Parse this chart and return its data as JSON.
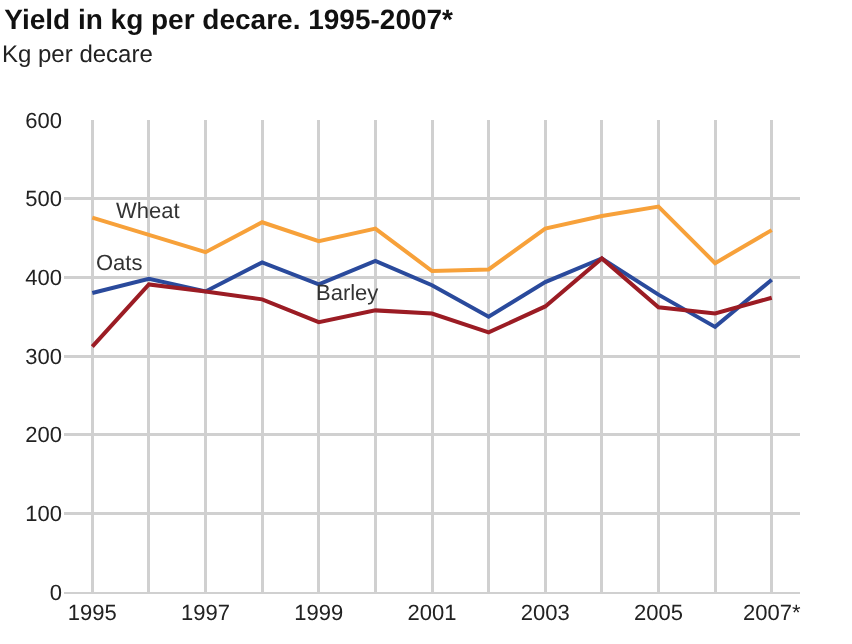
{
  "chart_data": {
    "type": "line",
    "title": "Yield in kg per decare. 1995-2007*",
    "ylabel": "Kg per decare",
    "x": [
      1995,
      1996,
      1997,
      1998,
      1999,
      2000,
      2001,
      2002,
      2003,
      2004,
      2005,
      2006,
      2007
    ],
    "series": [
      {
        "name": "Wheat",
        "color": "#f7a13a",
        "values": [
          476,
          454,
          432,
          470,
          446,
          462,
          408,
          410,
          462,
          478,
          490,
          418,
          460
        ]
      },
      {
        "name": "Oats",
        "color": "#2a4a9c",
        "values": [
          380,
          398,
          382,
          419,
          391,
          421,
          390,
          350,
          394,
          424,
          378,
          337,
          397
        ]
      },
      {
        "name": "Barley",
        "color": "#9b1c24",
        "values": [
          312,
          391,
          382,
          372,
          343,
          358,
          354,
          330,
          363,
          424,
          362,
          354,
          374
        ]
      }
    ],
    "xlim": [
      1994.5,
      2007.5
    ],
    "xticks": [
      1995,
      {
        "value": 1996,
        "label": null
      },
      1997,
      {
        "value": 1998,
        "label": null
      },
      1999,
      {
        "value": 2000,
        "label": null
      },
      2001,
      {
        "value": 2002,
        "label": null
      },
      2003,
      {
        "value": 2004,
        "label": null
      },
      2005,
      {
        "value": 2006,
        "label": null
      },
      {
        "value": 2007,
        "label": "2007*"
      }
    ],
    "ylim": [
      0,
      600
    ],
    "yticks": [
      0,
      100,
      200,
      300,
      400,
      500,
      600
    ],
    "grid": true,
    "legend": false,
    "marker": "none",
    "line_style": "solid"
  }
}
